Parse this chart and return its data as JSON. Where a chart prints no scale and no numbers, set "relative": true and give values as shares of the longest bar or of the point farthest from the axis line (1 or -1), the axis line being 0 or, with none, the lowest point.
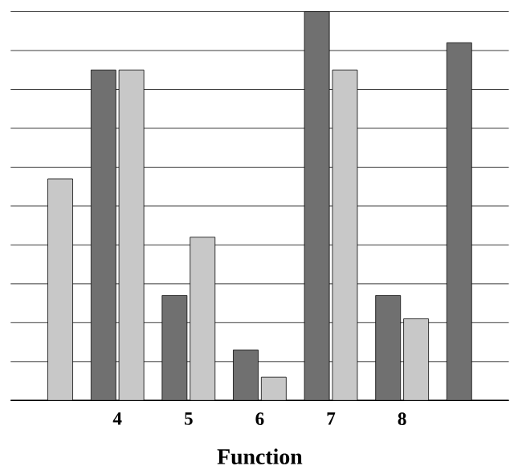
{
  "chart_data": {
    "type": "bar",
    "relative": true,
    "xlabel": "Function",
    "categories": [
      null,
      "4",
      "5",
      "6",
      "7",
      "8",
      null
    ],
    "grid": "y",
    "series": [
      {
        "color": "#707070",
        "values": [
          null,
          0.85,
          0.27,
          0.13,
          1.0,
          0.27,
          0.92
        ]
      },
      {
        "color": "#c8c8c8",
        "values": [
          0.57,
          0.85,
          0.42,
          0.06,
          0.85,
          0.21,
          null
        ]
      }
    ]
  }
}
